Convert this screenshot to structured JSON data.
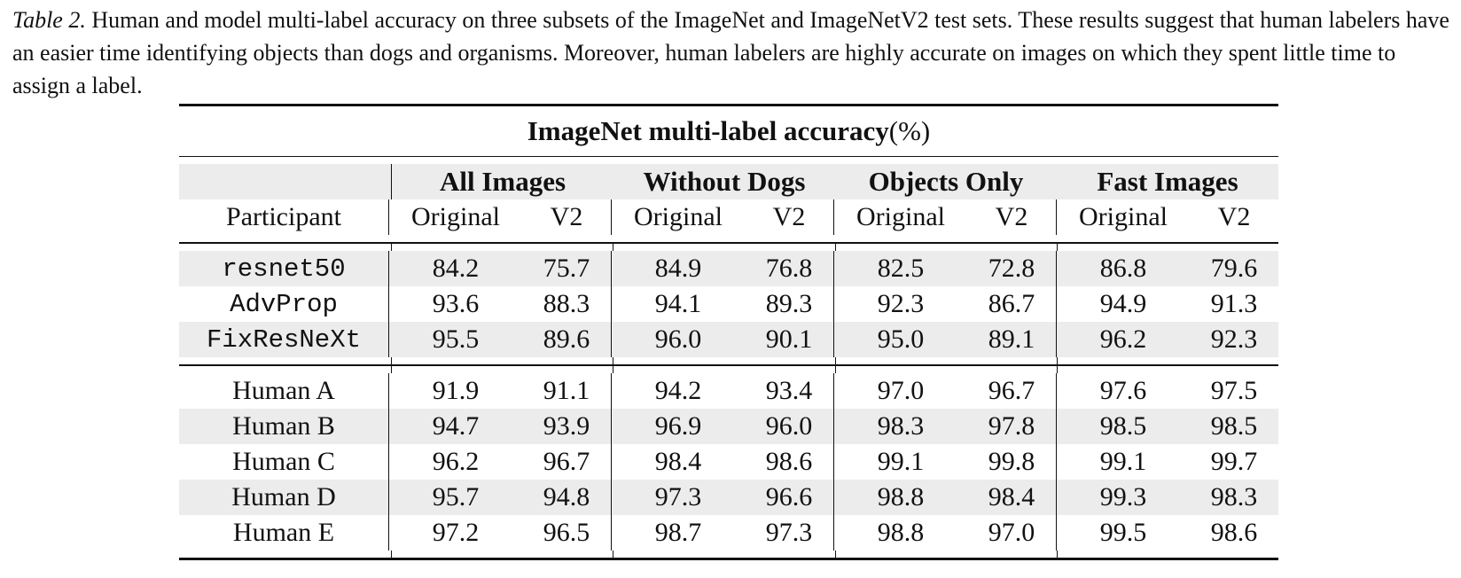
{
  "caption": {
    "label": "Table 2.",
    "text": " Human and model multi-label accuracy on three subsets of the ImageNet and ImageNetV2 test sets. These results suggest that human labelers have an easier time identifying objects than dogs and organisms. Moreover, human labelers are highly accurate on images on which they spent little time to assign a label."
  },
  "table": {
    "title_bold": "ImageNet multi-label accuracy",
    "title_unit": " (%)",
    "participant_header": "Participant",
    "groups": [
      "All Images",
      "Without Dogs",
      "Objects Only",
      "Fast Images"
    ],
    "sub_original": "Original",
    "sub_v2": "V2",
    "models": [
      {
        "name": "resnet50",
        "values": [
          "84.2",
          "75.7",
          "84.9",
          "76.8",
          "82.5",
          "72.8",
          "86.8",
          "79.6"
        ]
      },
      {
        "name": "AdvProp",
        "values": [
          "93.6",
          "88.3",
          "94.1",
          "89.3",
          "92.3",
          "86.7",
          "94.9",
          "91.3"
        ]
      },
      {
        "name": "FixResNeXt",
        "values": [
          "95.5",
          "89.6",
          "96.0",
          "90.1",
          "95.0",
          "89.1",
          "96.2",
          "92.3"
        ]
      }
    ],
    "humans": [
      {
        "name": "Human A",
        "values": [
          "91.9",
          "91.1",
          "94.2",
          "93.4",
          "97.0",
          "96.7",
          "97.6",
          "97.5"
        ]
      },
      {
        "name": "Human B",
        "values": [
          "94.7",
          "93.9",
          "96.9",
          "96.0",
          "98.3",
          "97.8",
          "98.5",
          "98.5"
        ]
      },
      {
        "name": "Human C",
        "values": [
          "96.2",
          "96.7",
          "98.4",
          "98.6",
          "99.1",
          "99.8",
          "99.1",
          "99.7"
        ]
      },
      {
        "name": "Human D",
        "values": [
          "95.7",
          "94.8",
          "97.3",
          "96.6",
          "98.8",
          "98.4",
          "99.3",
          "98.3"
        ]
      },
      {
        "name": "Human E",
        "values": [
          "97.2",
          "96.5",
          "98.7",
          "97.3",
          "98.8",
          "97.0",
          "99.5",
          "98.6"
        ]
      }
    ]
  }
}
